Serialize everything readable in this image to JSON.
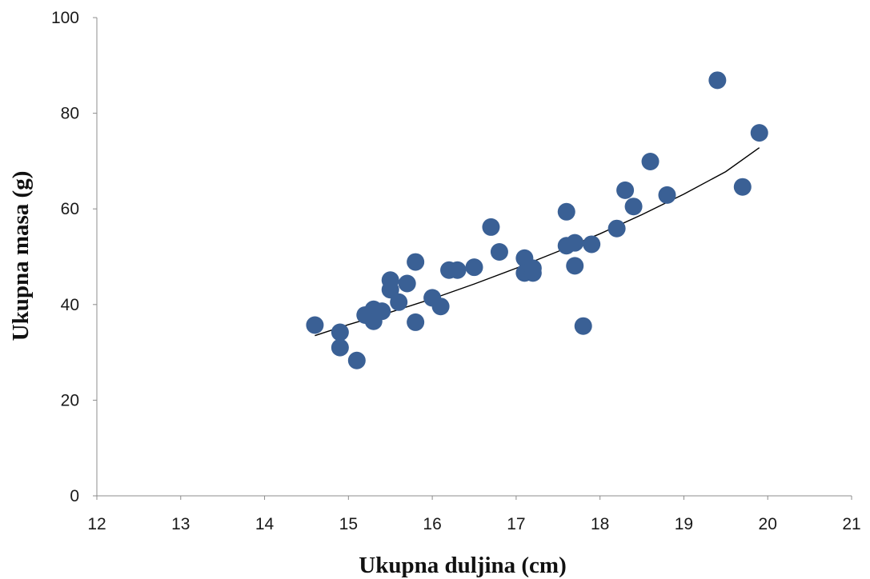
{
  "chart_data": {
    "type": "scatter",
    "title": "",
    "xlabel": "Ukupna duljina (cm)",
    "ylabel": "Ukupna masa (g)",
    "xlim": [
      12,
      21
    ],
    "ylim": [
      0,
      100
    ],
    "x_ticks": [
      12,
      13,
      14,
      15,
      16,
      17,
      18,
      19,
      20,
      21
    ],
    "y_ticks": [
      0,
      20,
      40,
      60,
      80,
      100
    ],
    "grid": false,
    "legend": "none",
    "marker_color": "#3a6095",
    "trendline_color": "#000000",
    "series": [
      {
        "points": [
          [
            14.6,
            35.7
          ],
          [
            14.9,
            34.2
          ],
          [
            14.9,
            31.0
          ],
          [
            15.1,
            28.3
          ],
          [
            15.2,
            37.8
          ],
          [
            15.3,
            39.0
          ],
          [
            15.3,
            36.5
          ],
          [
            15.4,
            38.6
          ],
          [
            15.5,
            45.1
          ],
          [
            15.5,
            43.1
          ],
          [
            15.6,
            40.5
          ],
          [
            15.7,
            44.4
          ],
          [
            15.8,
            48.9
          ],
          [
            15.8,
            36.3
          ],
          [
            16.0,
            41.4
          ],
          [
            16.1,
            39.6
          ],
          [
            16.2,
            47.2
          ],
          [
            16.3,
            47.2
          ],
          [
            16.5,
            47.8
          ],
          [
            16.7,
            56.2
          ],
          [
            16.8,
            51.0
          ],
          [
            17.1,
            49.7
          ],
          [
            17.1,
            46.6
          ],
          [
            17.2,
            46.6
          ],
          [
            17.2,
            47.6
          ],
          [
            17.6,
            59.4
          ],
          [
            17.6,
            52.3
          ],
          [
            17.7,
            52.9
          ],
          [
            17.7,
            48.1
          ],
          [
            17.8,
            35.5
          ],
          [
            17.9,
            52.6
          ],
          [
            18.2,
            55.9
          ],
          [
            18.3,
            63.9
          ],
          [
            18.4,
            60.5
          ],
          [
            18.6,
            69.9
          ],
          [
            18.8,
            62.9
          ],
          [
            19.4,
            86.9
          ],
          [
            19.7,
            64.6
          ],
          [
            19.9,
            75.9
          ]
        ]
      }
    ],
    "trendline": {
      "type": "power",
      "x": [
        14.6,
        15.0,
        15.5,
        16.0,
        16.5,
        17.0,
        17.5,
        18.0,
        18.5,
        19.0,
        19.5,
        19.9
      ],
      "y": [
        33.5,
        35.8,
        38.4,
        41.2,
        44.3,
        47.6,
        51.1,
        54.8,
        58.8,
        63.1,
        67.8,
        72.8
      ]
    }
  }
}
